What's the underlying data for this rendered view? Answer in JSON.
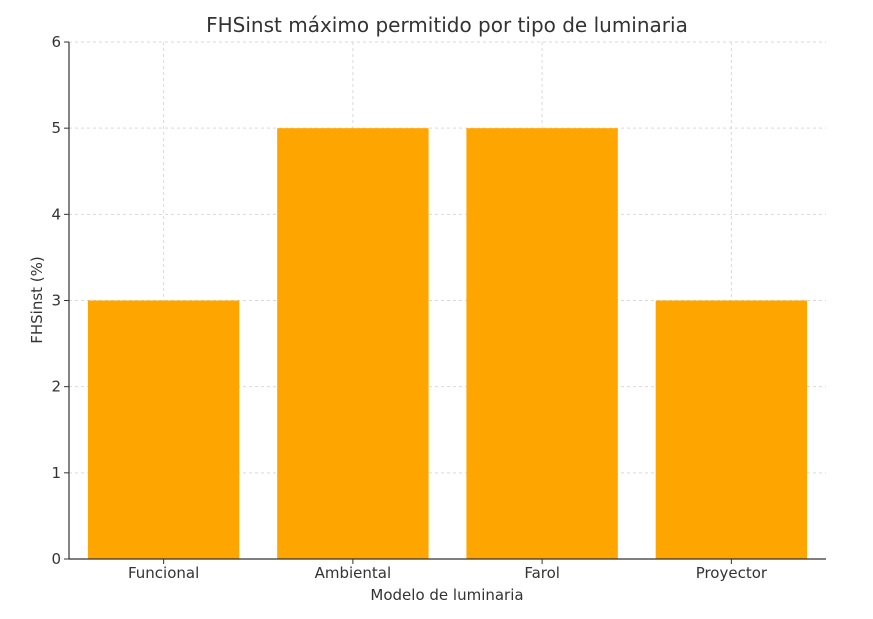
{
  "chart_data": {
    "type": "bar",
    "title": "FHSinst máximo permitido por tipo de luminaria",
    "xlabel": "Modelo de luminaria",
    "ylabel": "FHSinst (%)",
    "categories": [
      "Funcional",
      "Ambiental",
      "Farol",
      "Proyector"
    ],
    "values": [
      3,
      5,
      5,
      3
    ],
    "ylim": [
      0,
      6
    ],
    "yticks": [
      "0",
      "1",
      "2",
      "3",
      "4",
      "5",
      "6"
    ],
    "grid": true,
    "legend": "none",
    "colors": {
      "bar": "#FFA500",
      "grid": "#d9d9d9",
      "axis": "#333333"
    }
  }
}
